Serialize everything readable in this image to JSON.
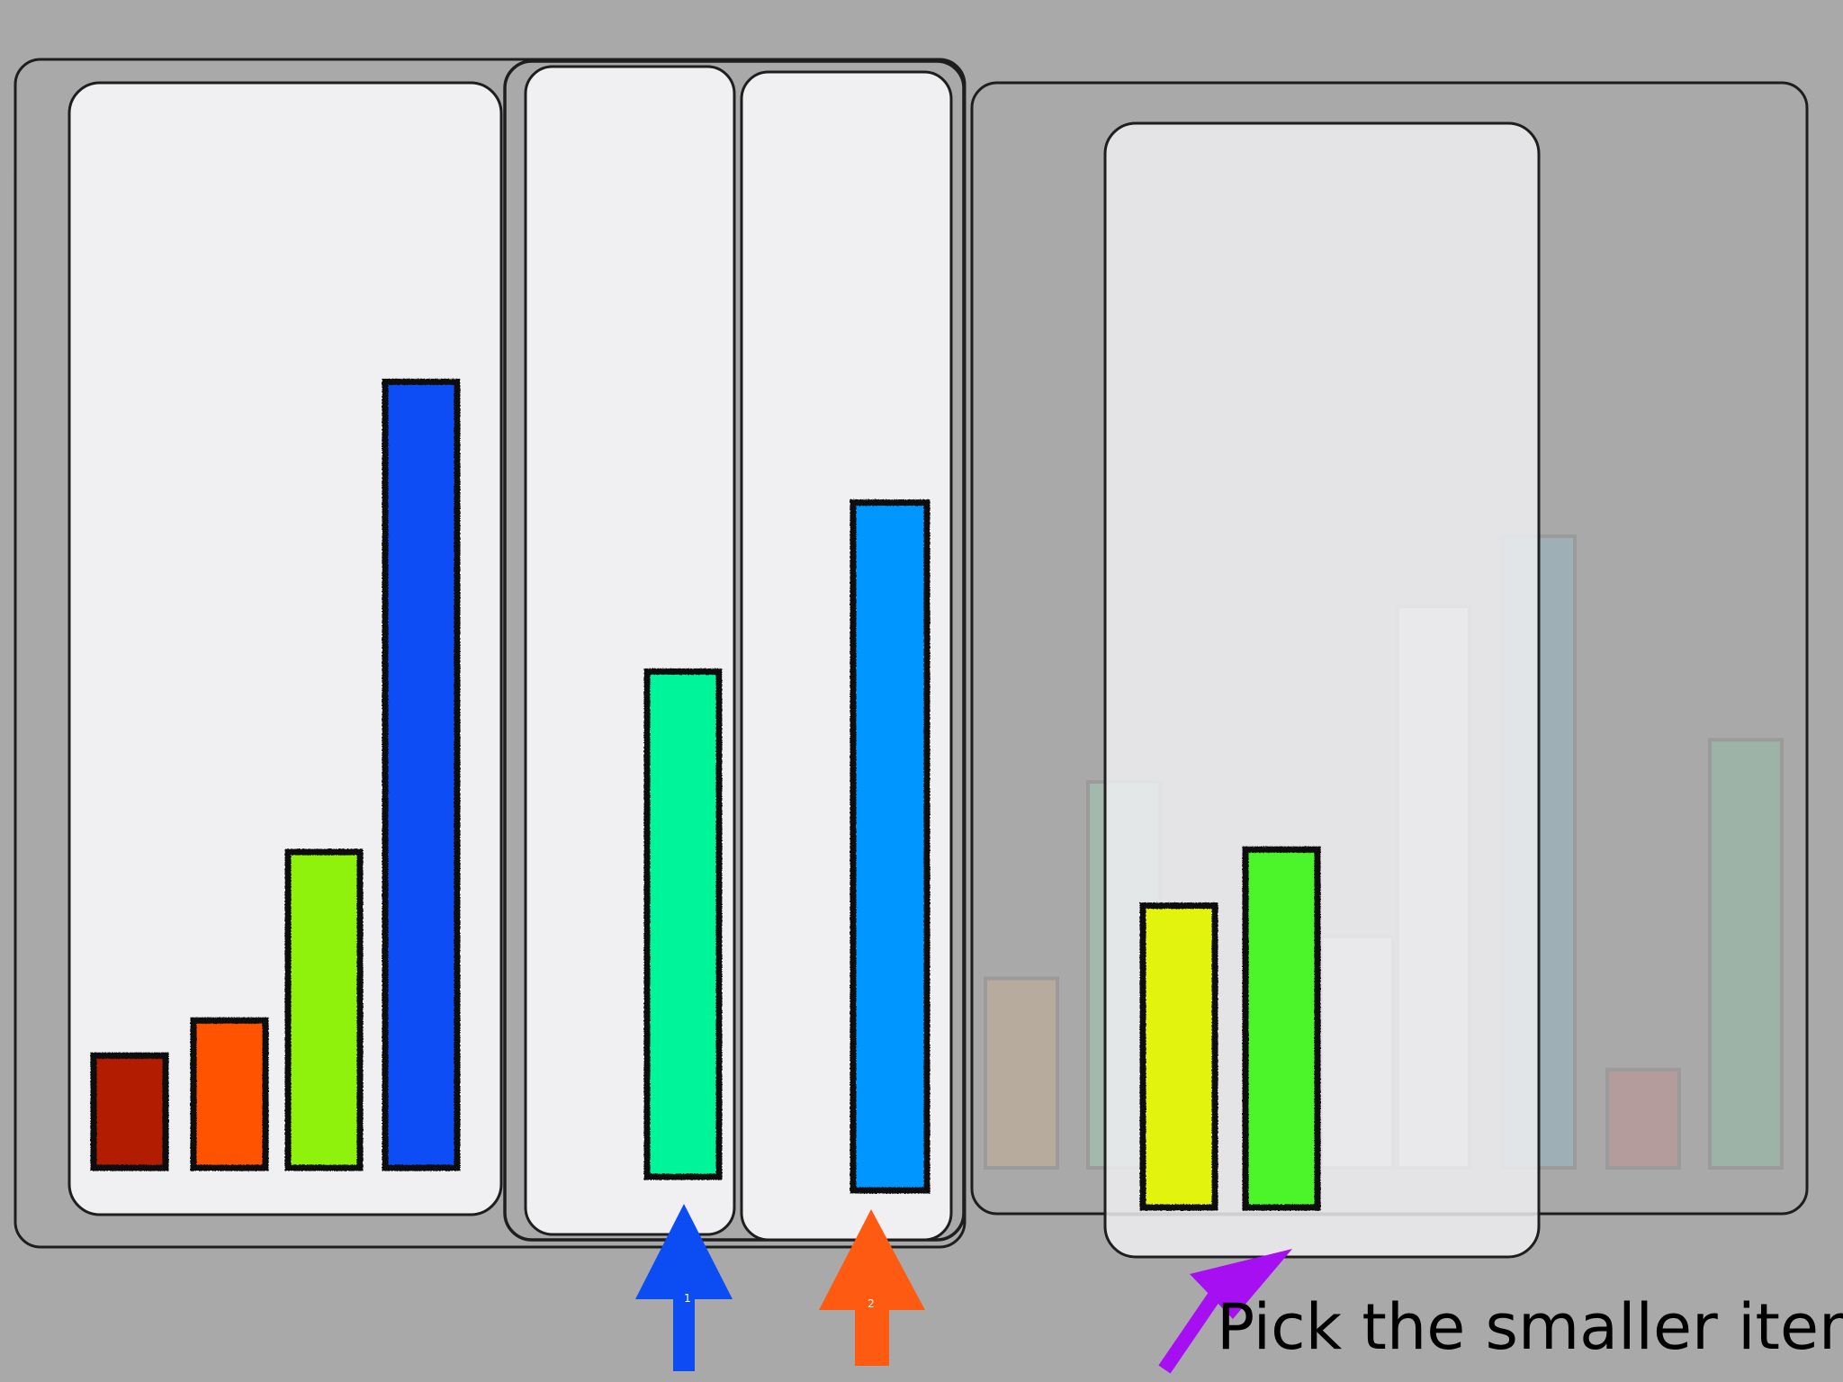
{
  "caption": "Pick the smaller item",
  "arrow_label_left": "1",
  "arrow_label_right": "2",
  "colors": {
    "background": "#a9a9aa",
    "panel": "#f0f0f2",
    "arrow_left": "#0b4df2",
    "arrow_right": "#ff5a12",
    "pointer": "#a60ff2"
  },
  "sorted_group": {
    "items": [
      {
        "name": "dark-red",
        "color": "#b21a00",
        "value": 16
      },
      {
        "name": "orange",
        "color": "#ff5200",
        "value": 21
      },
      {
        "name": "lime",
        "color": "#8ef20c",
        "value": 45
      },
      {
        "name": "blue",
        "color": "#0a4ef6",
        "value": 112
      }
    ]
  },
  "comparison": {
    "left": {
      "name": "teal-green",
      "color": "#00f59a",
      "value": 72
    },
    "right": {
      "name": "sky-blue",
      "color": "#0396ff",
      "value": 98
    }
  },
  "unsorted_group": {
    "items": [
      {
        "name": "tan",
        "color": "#c8ae8c",
        "value": 27,
        "faded": true
      },
      {
        "name": "pale-green",
        "color": "#9fd1b2",
        "value": 55,
        "faded": true
      },
      {
        "name": "yellow",
        "color": "#e2f30a",
        "value": 43,
        "faded": false
      },
      {
        "name": "green",
        "color": "#4cf52b",
        "value": 51,
        "faded": false
      },
      {
        "name": "ivory",
        "color": "#f3f1e8",
        "value": 33,
        "faded": true
      },
      {
        "name": "mint",
        "color": "#e9f3f1",
        "value": 80,
        "faded": true
      },
      {
        "name": "steel-blue",
        "color": "#8fbac7",
        "value": 90,
        "faded": true
      },
      {
        "name": "dusty-rose",
        "color": "#c48c8c",
        "value": 14,
        "faded": true
      },
      {
        "name": "sage",
        "color": "#8fc3a6",
        "value": 61,
        "faded": true
      }
    ]
  }
}
